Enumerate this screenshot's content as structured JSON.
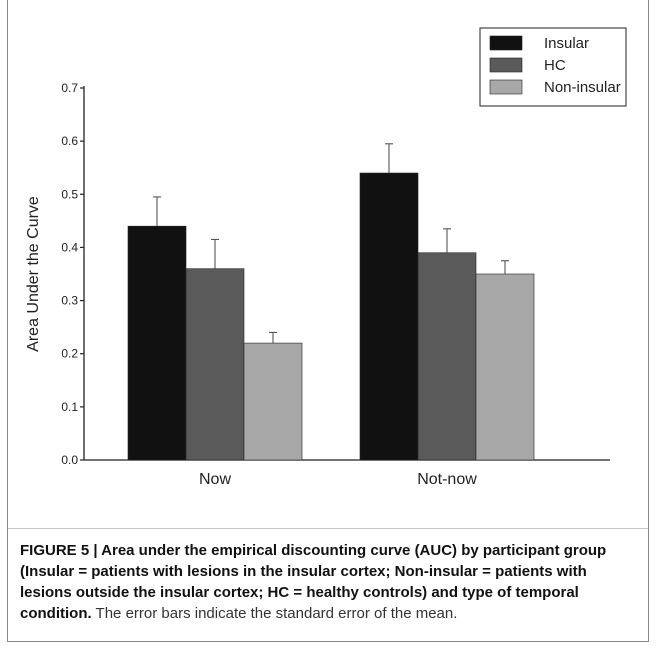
{
  "chart_data": {
    "type": "bar",
    "categories": [
      "Now",
      "Not-now"
    ],
    "series": [
      {
        "name": "Insular",
        "values": [
          0.44,
          0.54
        ],
        "errors": [
          0.055,
          0.055
        ],
        "color": "#111111"
      },
      {
        "name": "HC",
        "values": [
          0.36,
          0.39
        ],
        "errors": [
          0.055,
          0.045
        ],
        "color": "#5a5a5a"
      },
      {
        "name": "Non-insular",
        "values": [
          0.22,
          0.35
        ],
        "errors": [
          0.02,
          0.025
        ],
        "color": "#a8a8a8"
      }
    ],
    "ylabel": "Area Under the Curve",
    "xlabel": "",
    "ylim": [
      0,
      0.7
    ],
    "yticks": [
      "0.0",
      "0.1",
      "0.2",
      "0.3",
      "0.4",
      "0.5",
      "0.6",
      "0.7"
    ],
    "legend_position": "top-right",
    "grid": false
  },
  "caption": {
    "lead": "FIGURE 5 | Area under the empirical discounting curve (AUC) by participant group (Insular = patients with lesions in the insular cortex; Non-insular = patients with lesions outside the insular cortex; HC = healthy controls) and type of temporal condition.",
    "rest": " The error bars indicate the standard error of the mean."
  }
}
